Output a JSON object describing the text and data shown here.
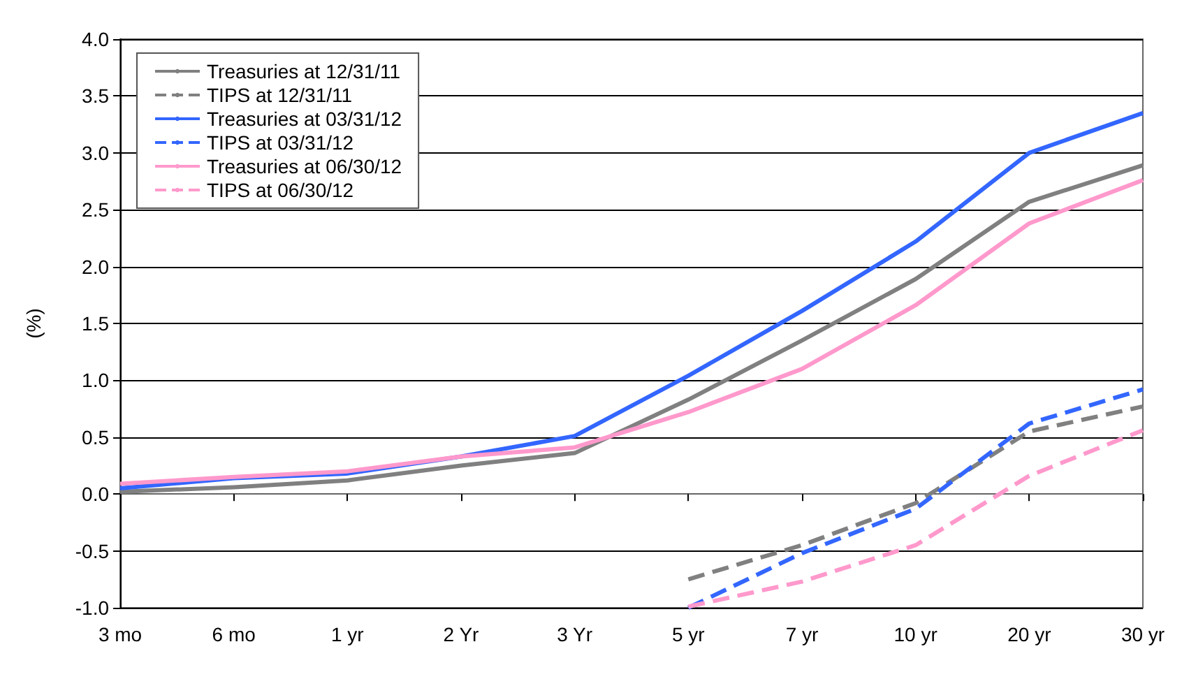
{
  "chart_data": {
    "type": "line",
    "ylabel": "(%)",
    "categories": [
      "3 mo",
      "6 mo",
      "1 yr",
      "2 Yr",
      "3 Yr",
      "5 yr",
      "7 yr",
      "10 yr",
      "20 yr",
      "30 yr"
    ],
    "series": [
      {
        "name": "Treasuries at 12/31/11",
        "color": "#808080",
        "line_style": "solid",
        "values": [
          0.02,
          0.06,
          0.12,
          0.25,
          0.36,
          0.83,
          1.35,
          1.89,
          2.57,
          2.89
        ]
      },
      {
        "name": "TIPS at 12/31/11",
        "color": "#808080",
        "line_style": "dashed",
        "values": [
          null,
          null,
          null,
          null,
          null,
          -0.75,
          -0.45,
          -0.08,
          0.55,
          0.77
        ]
      },
      {
        "name": "Treasuries at 03/31/12",
        "color": "#3366ff",
        "line_style": "solid",
        "values": [
          0.05,
          0.14,
          0.18,
          0.33,
          0.51,
          1.04,
          1.61,
          2.22,
          3.0,
          3.35
        ]
      },
      {
        "name": "TIPS at 03/31/12",
        "color": "#3366ff",
        "line_style": "dashed",
        "values": [
          null,
          null,
          null,
          null,
          null,
          -1.0,
          -0.52,
          -0.13,
          0.62,
          0.92
        ]
      },
      {
        "name": "Treasuries at 06/30/12",
        "color": "#ff99cc",
        "line_style": "solid",
        "values": [
          0.09,
          0.15,
          0.2,
          0.33,
          0.41,
          0.72,
          1.1,
          1.66,
          2.38,
          2.76
        ]
      },
      {
        "name": "TIPS at 06/30/12",
        "color": "#ff99cc",
        "line_style": "dashed",
        "values": [
          null,
          null,
          null,
          null,
          null,
          -0.99,
          -0.77,
          -0.45,
          0.16,
          0.56
        ]
      }
    ],
    "ylim": [
      -1.0,
      4.0
    ],
    "yticks": [
      {
        "value": -1,
        "label": "-1.0"
      },
      {
        "value": -0.5,
        "label": "-0.5"
      },
      {
        "value": 0,
        "label": "0.0"
      },
      {
        "value": 0.5,
        "label": "0.5"
      },
      {
        "value": 1,
        "label": "1.0"
      },
      {
        "value": 1.5,
        "label": "1.5"
      },
      {
        "value": 2,
        "label": "2.0"
      },
      {
        "value": 2.5,
        "label": "2.5"
      },
      {
        "value": 3,
        "label": "3.0"
      },
      {
        "value": 3.5,
        "label": "3.5"
      },
      {
        "value": 4,
        "label": "4.0"
      }
    ],
    "grid": "y",
    "legend": "top left",
    "marker": "none"
  }
}
